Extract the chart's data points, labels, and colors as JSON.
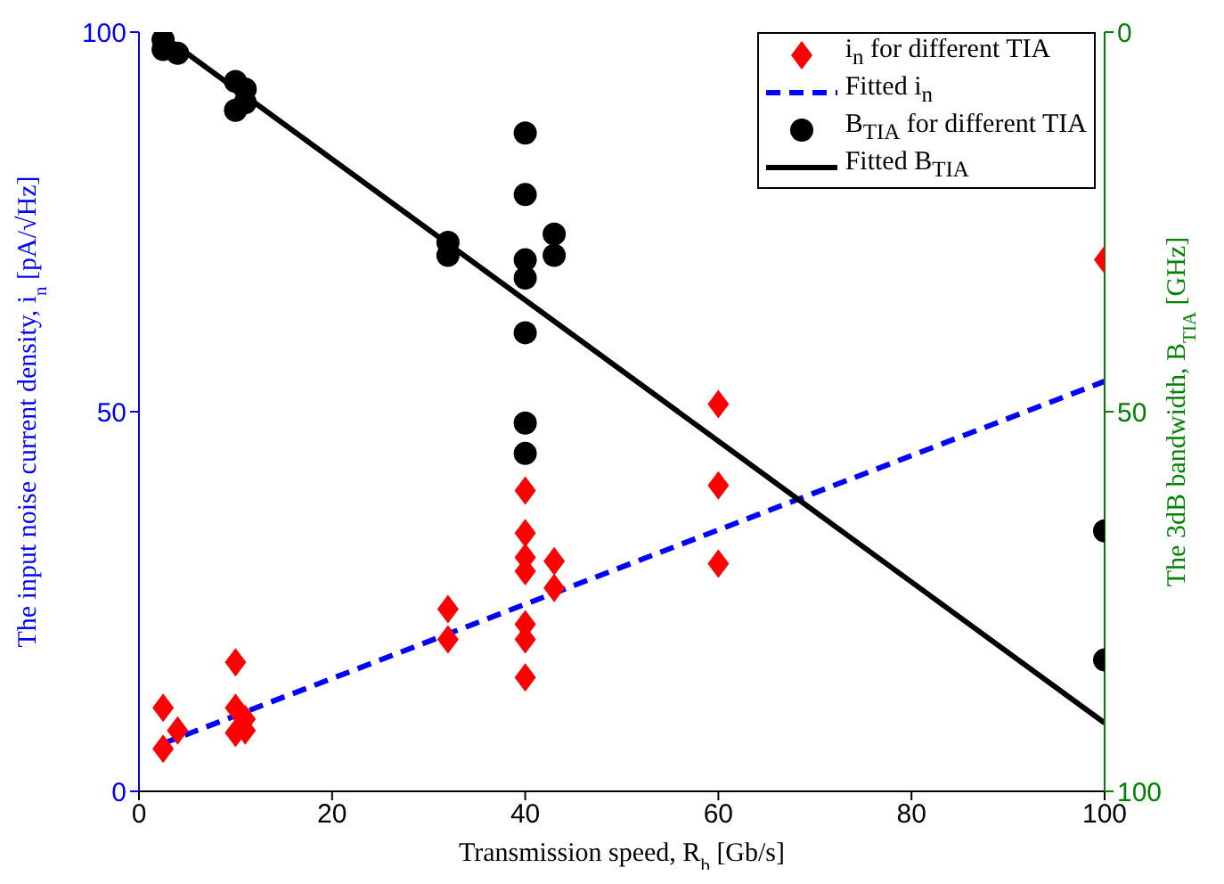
{
  "chart_data": {
    "type": "scatter",
    "xlabel": "Transmission speed, R$_{b}$ [Gb/s]",
    "ylabel": "The input noise current density, i$_{n}$ [pA/√Hz]",
    "y2label": "The 3dB bandwidth, B$_{TIA}$ [GHz]",
    "xlim": [
      0,
      100
    ],
    "xticks": [
      0,
      20,
      40,
      60,
      80,
      100
    ],
    "ylim": [
      0,
      100
    ],
    "yticks": [
      0,
      50,
      100
    ],
    "y2lim": [
      100,
      0
    ],
    "y2ticks": [
      0,
      50,
      100
    ],
    "grid": false,
    "legend": "top right",
    "series": [
      {
        "name": "i$_{n}$ for different TIA",
        "type": "scatter",
        "marker": "diamond",
        "color": "#ff0000",
        "x": [
          2.5,
          2.5,
          4,
          10,
          10,
          10,
          11,
          11,
          32,
          32,
          40,
          40,
          40,
          40,
          40,
          40,
          40,
          43,
          43,
          60,
          60,
          60,
          100
        ],
        "values": [
          11,
          5.6,
          8,
          17,
          11,
          7.7,
          9.5,
          8,
          24,
          20,
          39.6,
          34,
          30.8,
          29,
          22,
          20,
          15,
          30.3,
          26.8,
          51,
          40.3,
          30,
          70
        ]
      },
      {
        "name": "Fitted i$_{n}$",
        "type": "line",
        "line_style": "dashed",
        "marker": "none",
        "color": "#0000ff",
        "x": [
          2.5,
          100
        ],
        "values": [
          6.3,
          54
        ]
      },
      {
        "name": "B$_{TIA}$ for different TIA",
        "type": "scatter",
        "marker": "circle",
        "color": "#000000",
        "axis": "y2",
        "x": [
          2.5,
          2.5,
          4,
          10,
          10,
          11,
          11,
          32,
          32,
          40,
          40,
          40,
          40,
          40,
          40,
          40,
          43,
          43,
          100,
          100
        ],
        "values": [
          1,
          2.3,
          2.8,
          6.5,
          10.3,
          7.5,
          9.3,
          27.7,
          29.4,
          13.3,
          21.4,
          30,
          32.4,
          39.6,
          51.5,
          55.5,
          26.6,
          29.4,
          65.7,
          82.7
        ]
      },
      {
        "name": "Fitted B$_{TIA}$",
        "type": "line",
        "line_style": "solid",
        "marker": "none",
        "color": "#000000",
        "axis": "y2",
        "x": [
          2.5,
          100
        ],
        "values": [
          0.5,
          91
        ]
      }
    ]
  }
}
